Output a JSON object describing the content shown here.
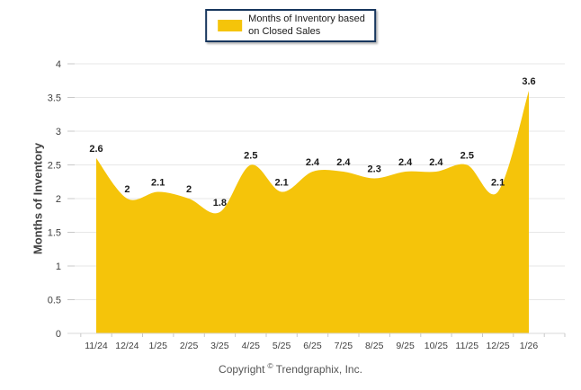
{
  "legend": {
    "label_line1": "Months of Inventory based",
    "label_line2": "on Closed Sales",
    "swatch_icon": "gold-square-swatch"
  },
  "footer": {
    "copyright_prefix": "Copyright",
    "copyright_symbol": "©",
    "copyright_suffix": "Trendgraphix, Inc."
  },
  "chart_data": {
    "type": "area",
    "title": "",
    "series_name": "Months of Inventory based on Closed Sales",
    "categories": [
      "11/24",
      "12/24",
      "1/25",
      "2/25",
      "3/25",
      "4/25",
      "5/25",
      "6/25",
      "7/25",
      "8/25",
      "9/25",
      "10/25",
      "11/25",
      "12/25",
      "1/26"
    ],
    "values": [
      2.6,
      2,
      2.1,
      2,
      1.8,
      2.5,
      2.1,
      2.4,
      2.4,
      2.3,
      2.4,
      2.4,
      2.5,
      2.1,
      3.6
    ],
    "point_labels": [
      "2.6",
      "2",
      "2.1",
      "2",
      "1.8",
      "2.5",
      "2.1",
      "2.4",
      "2.4",
      "2.3",
      "2.4",
      "2.4",
      "2.5",
      "2.1",
      "3.6"
    ],
    "xlabel": "",
    "ylabel": "Months of Inventory",
    "ylim": [
      0,
      4
    ],
    "yticks": [
      "0",
      "0.5",
      "1",
      "1.5",
      "2",
      "2.5",
      "3",
      "3.5",
      "4"
    ],
    "grid": true,
    "legend_position": "top-center",
    "colors": {
      "area_fill": "#F5C40A",
      "gridline": "#E7E7E7",
      "baseline": "#D9D9D9",
      "tick": "#C9C9C9",
      "axis_text": "#404040",
      "data_label": "#1A1A1A",
      "legend_border": "#17365D",
      "copyright_text": "#555555",
      "background": "#FFFFFF"
    }
  }
}
